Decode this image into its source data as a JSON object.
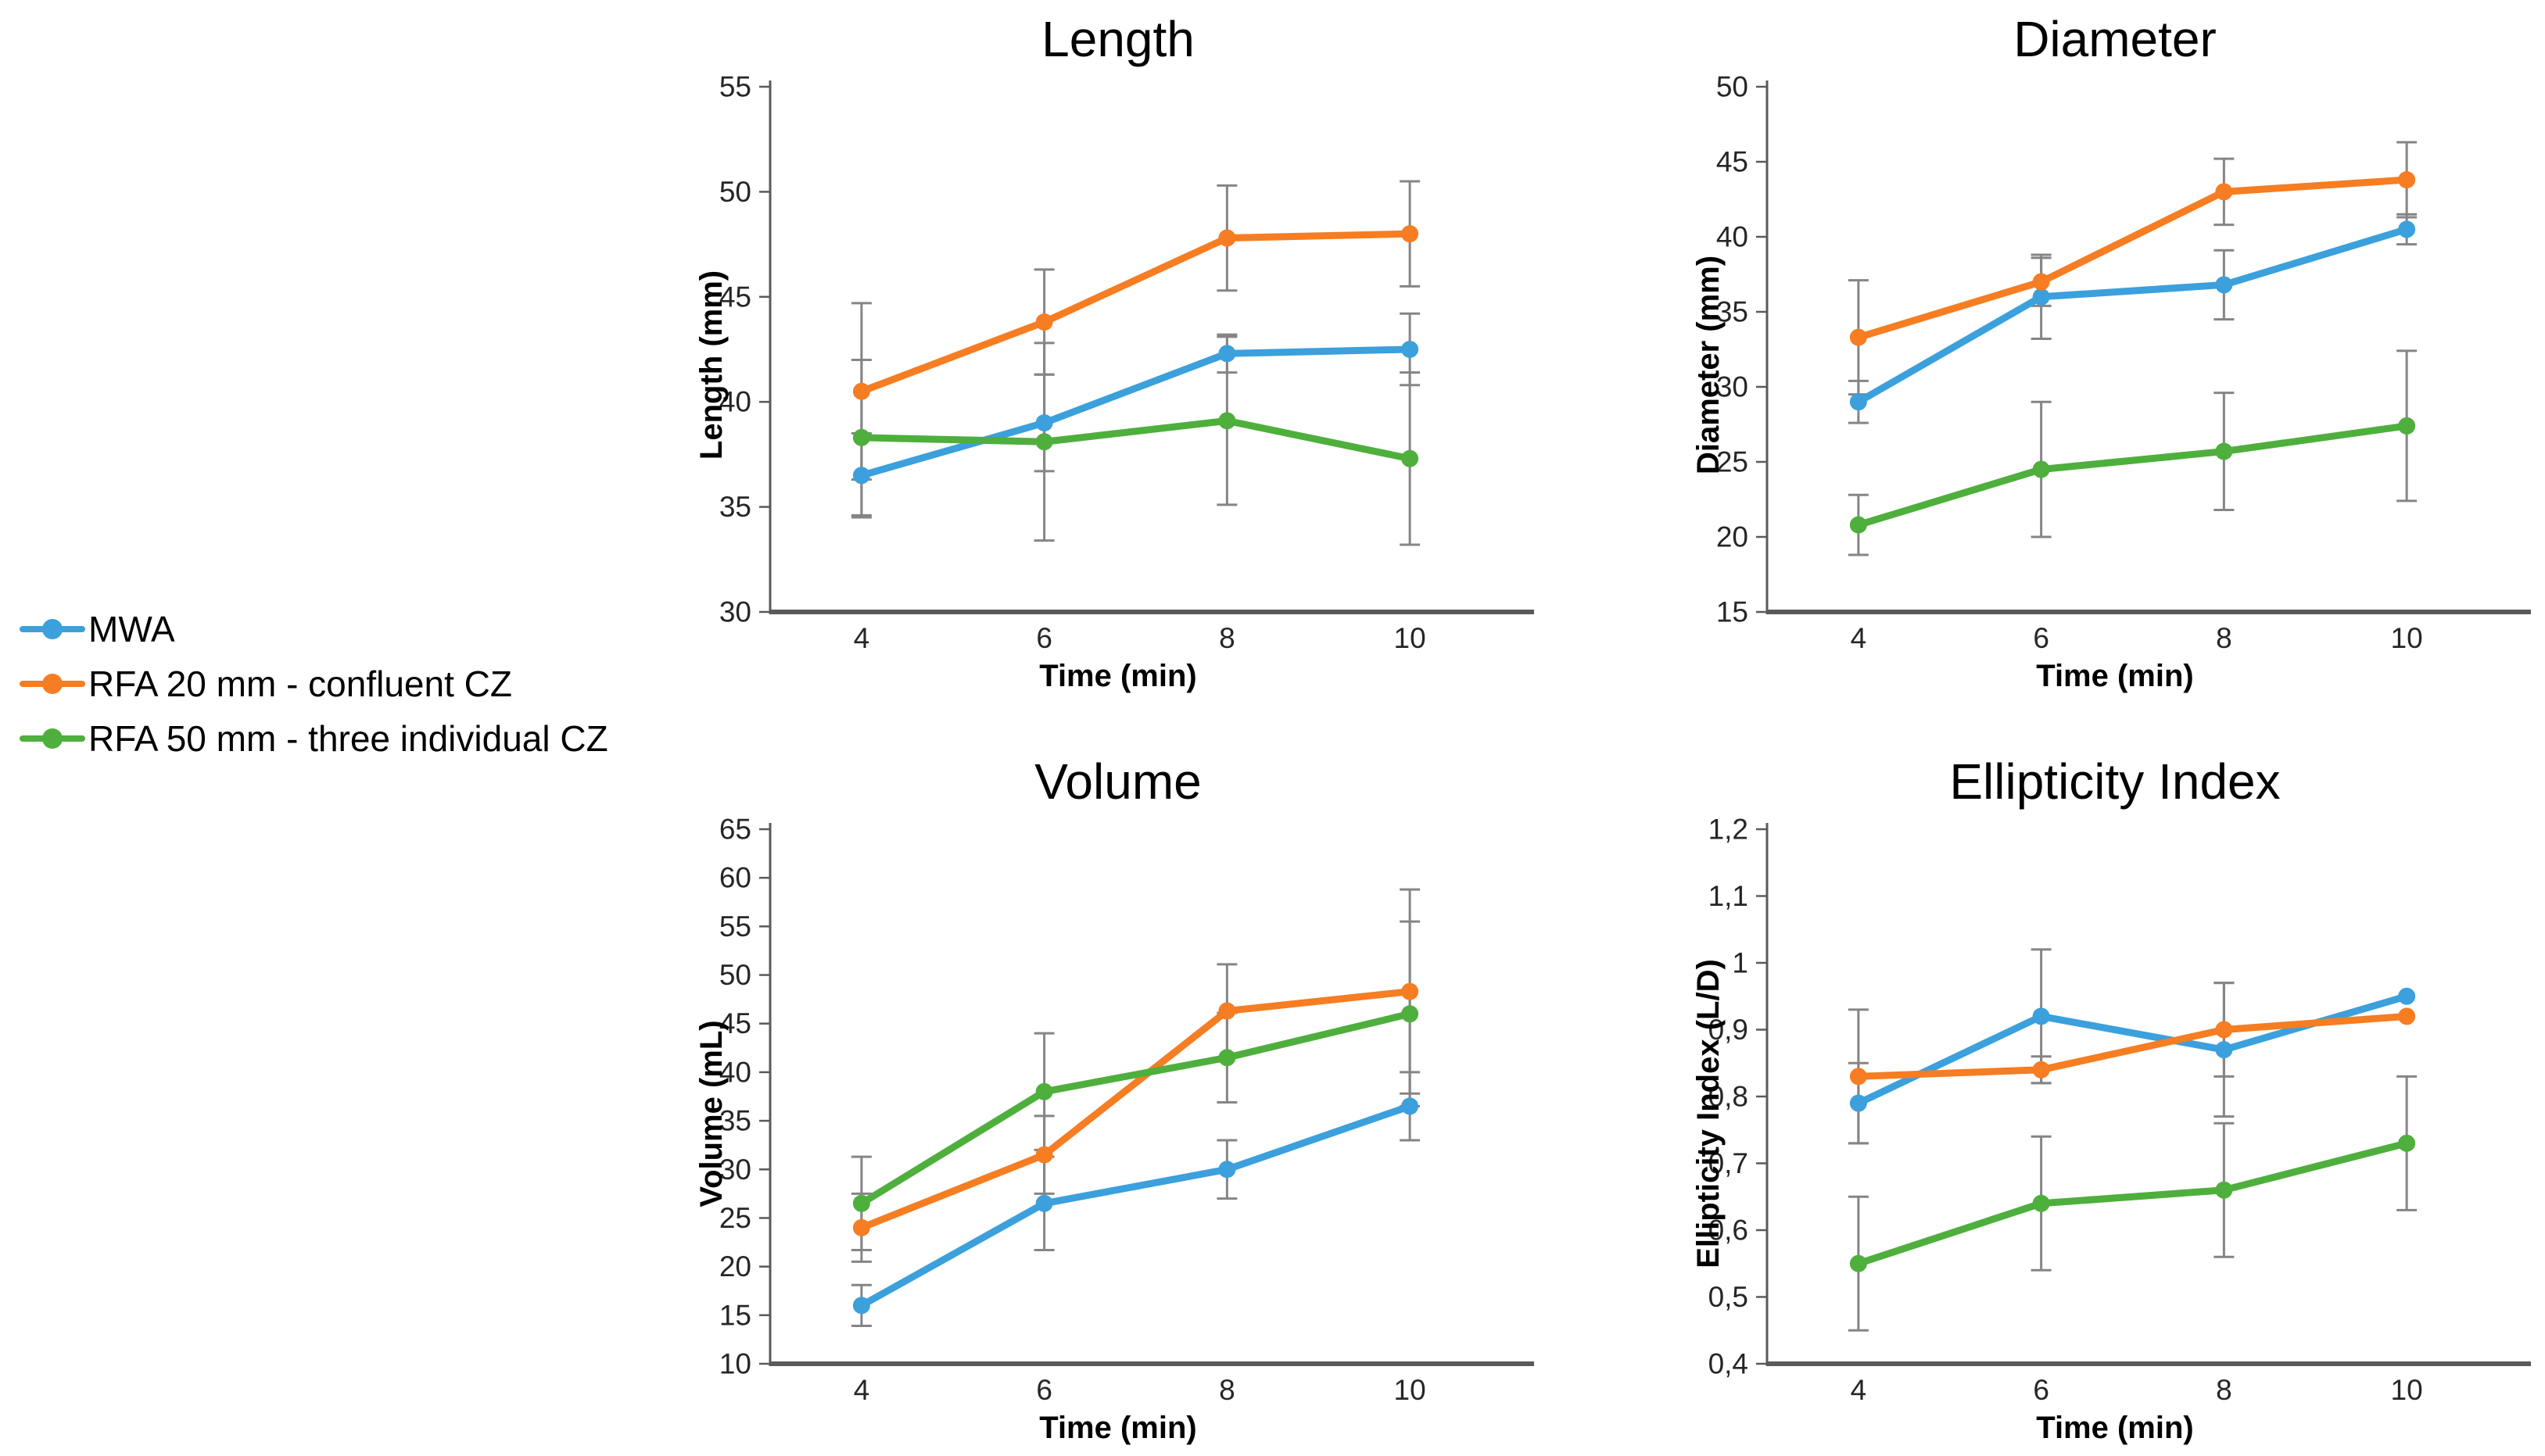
{
  "figure": {
    "background": "#ffffff"
  },
  "style": {
    "axis_color": "#5a5a5a",
    "error_bar_color": "#858585",
    "tick_text_color": "#262626",
    "text_color": "#000000"
  },
  "legend": {
    "position": "middle-left",
    "items": [
      {
        "label": "MWA",
        "color": "#3ba0dc"
      },
      {
        "label": "RFA 20 mm - confluent CZ",
        "color": "#f67d22"
      },
      {
        "label": "RFA 50 mm - three individual CZ",
        "color": "#4eaf3d"
      }
    ]
  },
  "chart_data": [
    {
      "type": "line",
      "title": "Length",
      "xlabel": "Time (min)",
      "ylabel": "Length (mm)",
      "x_categories": [
        "4",
        "6",
        "8",
        "10"
      ],
      "ylim": [
        30,
        55
      ],
      "y_tick_values": [
        55,
        50,
        45,
        40,
        35,
        30
      ],
      "y_tick_labels": [
        "55",
        "50",
        "45",
        "40",
        "35",
        "30"
      ],
      "grid": false,
      "error_bars": true,
      "series": [
        {
          "name": "MWA",
          "color": "#3ba0dc",
          "values": [
            36.5,
            39.0,
            42.3,
            42.5
          ],
          "errors": [
            2.0,
            2.3,
            0.9,
            1.7
          ]
        },
        {
          "name": "RFA 20 mm - confluent CZ",
          "color": "#f67d22",
          "values": [
            40.5,
            43.8,
            47.8,
            48.0
          ],
          "errors": [
            4.2,
            2.5,
            2.5,
            2.5
          ]
        },
        {
          "name": "RFA 50 mm - three individual CZ",
          "color": "#4eaf3d",
          "values": [
            38.3,
            38.1,
            39.1,
            37.3
          ],
          "errors": [
            3.7,
            4.7,
            4.0,
            4.1
          ]
        }
      ]
    },
    {
      "type": "line",
      "title": "Diameter",
      "xlabel": "Time (min)",
      "ylabel": "Diameter (mm)",
      "x_categories": [
        "4",
        "6",
        "8",
        "10"
      ],
      "ylim": [
        15,
        50
      ],
      "y_tick_values": [
        50,
        45,
        40,
        35,
        30,
        25,
        20,
        15
      ],
      "y_tick_labels": [
        "50",
        "45",
        "40",
        "35",
        "30",
        "25",
        "20",
        "15"
      ],
      "grid": false,
      "error_bars": true,
      "series": [
        {
          "name": "MWA",
          "color": "#3ba0dc",
          "values": [
            29.0,
            36.0,
            36.8,
            40.5
          ],
          "errors": [
            1.4,
            2.8,
            2.3,
            1.0
          ]
        },
        {
          "name": "RFA 20 mm - confluent CZ",
          "color": "#f67d22",
          "values": [
            33.3,
            37.0,
            43.0,
            43.8
          ],
          "errors": [
            3.8,
            1.6,
            2.2,
            2.5
          ]
        },
        {
          "name": "RFA 50 mm - three individual CZ",
          "color": "#4eaf3d",
          "values": [
            20.8,
            24.5,
            25.7,
            27.4
          ],
          "errors": [
            2.0,
            4.5,
            3.9,
            5.0
          ]
        }
      ]
    },
    {
      "type": "line",
      "title": "Volume",
      "xlabel": "Time (min)",
      "ylabel": "Volume (mL)",
      "x_categories": [
        "4",
        "6",
        "8",
        "10"
      ],
      "ylim": [
        10,
        65
      ],
      "y_tick_values": [
        65,
        60,
        55,
        50,
        45,
        40,
        35,
        30,
        25,
        20,
        15,
        10
      ],
      "y_tick_labels": [
        "65",
        "60",
        "55",
        "50",
        "45",
        "40",
        "35",
        "30",
        "25",
        "20",
        "15",
        "10"
      ],
      "grid": false,
      "error_bars": true,
      "series": [
        {
          "name": "MWA",
          "color": "#3ba0dc",
          "values": [
            16.0,
            26.5,
            30.0,
            36.5
          ],
          "errors": [
            2.1,
            4.8,
            3.0,
            3.5
          ]
        },
        {
          "name": "RFA 20 mm - confluent CZ",
          "color": "#f67d22",
          "values": [
            24.0,
            31.5,
            46.3,
            48.3
          ],
          "errors": [
            3.5,
            4.0,
            4.8,
            10.5
          ]
        },
        {
          "name": "RFA 50 mm - three individual CZ",
          "color": "#4eaf3d",
          "values": [
            26.5,
            38.0,
            41.5,
            46.0
          ],
          "errors": [
            4.8,
            6.0,
            4.6,
            9.5
          ]
        }
      ]
    },
    {
      "type": "line",
      "title": "Ellipticity Index",
      "xlabel": "Time (min)",
      "ylabel": "Ellipticity Index (L/D)",
      "x_categories": [
        "4",
        "6",
        "8",
        "10"
      ],
      "ylim": [
        0.4,
        1.2
      ],
      "y_tick_values": [
        1.2,
        1.1,
        1.0,
        0.9,
        0.8,
        0.7,
        0.6,
        0.5,
        0.4
      ],
      "y_tick_labels": [
        "1,2",
        "1,1",
        "1",
        "0,9",
        "0,8",
        "0,7",
        "0,6",
        "0,5",
        "0,4"
      ],
      "grid": false,
      "error_bars": true,
      "series": [
        {
          "name": "MWA",
          "color": "#3ba0dc",
          "values": [
            0.79,
            0.92,
            0.87,
            0.95
          ],
          "errors": [
            0.06,
            0.1,
            0.1,
            0
          ]
        },
        {
          "name": "RFA 20 mm - confluent CZ",
          "color": "#f67d22",
          "values": [
            0.83,
            0.84,
            0.9,
            0.92
          ],
          "errors": [
            0.1,
            0.02,
            0.07,
            0
          ]
        },
        {
          "name": "RFA 50 mm - three individual CZ",
          "color": "#4eaf3d",
          "values": [
            0.55,
            0.64,
            0.66,
            0.73
          ],
          "errors": [
            0.1,
            0.1,
            0.1,
            0.1
          ]
        }
      ]
    }
  ]
}
